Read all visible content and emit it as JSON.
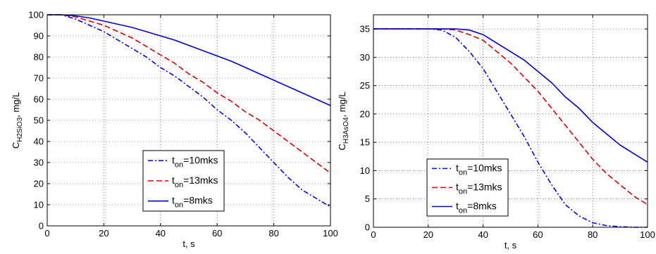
{
  "chart_data": [
    {
      "type": "line",
      "xlabel": "t, s",
      "ylabel": {
        "base": "C",
        "sub": "H2SiO3",
        "unit": ", mg/L"
      },
      "xlim": [
        0,
        100
      ],
      "ylim": [
        0,
        100
      ],
      "xticks": [
        0,
        20,
        40,
        60,
        80,
        100
      ],
      "yticks": [
        0,
        10,
        20,
        30,
        40,
        50,
        60,
        70,
        80,
        90,
        100
      ],
      "grid": true,
      "legend": {
        "placement": "lower-left",
        "sub": "on"
      },
      "series": [
        {
          "name": "t_on=10mks",
          "name_base": "t",
          "name_rest": "=10mks",
          "color": "#0000ff",
          "style": "dashdot",
          "x": [
            0,
            5,
            10,
            15,
            20,
            25,
            30,
            35,
            40,
            45,
            50,
            55,
            60,
            65,
            70,
            75,
            80,
            85,
            90,
            95,
            100
          ],
          "y": [
            100,
            100,
            98,
            95,
            92,
            88,
            84,
            80,
            75,
            71,
            66,
            61,
            55,
            50,
            44,
            37,
            30,
            23,
            17,
            13,
            9
          ]
        },
        {
          "name": "t_on=13mks",
          "name_base": "t",
          "name_rest": "=13mks",
          "color": "#e00000",
          "style": "dashed",
          "x": [
            0,
            5,
            10,
            15,
            20,
            25,
            30,
            35,
            40,
            45,
            50,
            55,
            60,
            65,
            70,
            75,
            80,
            85,
            90,
            95,
            100
          ],
          "y": [
            100,
            100,
            99,
            97,
            95,
            92,
            89,
            85,
            81,
            77,
            72,
            68,
            63,
            59,
            54,
            50,
            45,
            40,
            35,
            30,
            25
          ]
        },
        {
          "name": "t_on=8mks",
          "name_base": "t",
          "name_rest": "=8mks",
          "color": "#0000cc",
          "style": "solid",
          "x": [
            0,
            5,
            10,
            15,
            20,
            25,
            30,
            35,
            40,
            45,
            50,
            55,
            60,
            65,
            70,
            75,
            80,
            85,
            90,
            95,
            100
          ],
          "y": [
            100,
            100,
            99.5,
            98.5,
            97,
            95.5,
            94,
            92,
            90,
            88,
            85.5,
            83,
            80.5,
            78,
            75,
            72,
            69,
            66,
            63,
            60,
            57
          ]
        }
      ]
    },
    {
      "type": "line",
      "xlabel": "t, s",
      "ylabel": {
        "base": "C",
        "sub": "H3AsO4",
        "unit": ", mg/L"
      },
      "xlim": [
        0,
        100
      ],
      "ylim": [
        0,
        37.5
      ],
      "xticks": [
        0,
        20,
        40,
        60,
        80,
        100
      ],
      "yticks": [
        0,
        5,
        10,
        15,
        20,
        25,
        30,
        35
      ],
      "grid": true,
      "legend": {
        "placement": "lower-left",
        "sub": "on"
      },
      "series": [
        {
          "name": "t_on=10mks",
          "name_base": "t",
          "name_rest": "=10mks",
          "color": "#0000ff",
          "style": "dashdot",
          "x": [
            0,
            5,
            10,
            15,
            20,
            25,
            30,
            35,
            40,
            45,
            50,
            55,
            60,
            65,
            70,
            75,
            80,
            85,
            90,
            95,
            100
          ],
          "y": [
            35,
            35,
            35,
            35,
            35,
            34.8,
            33.5,
            31,
            28,
            24,
            20,
            16,
            11.5,
            7.5,
            4,
            2,
            0.8,
            0.3,
            0.1,
            0,
            0
          ]
        },
        {
          "name": "t_on=13mks",
          "name_base": "t",
          "name_rest": "=13mks",
          "color": "#e00000",
          "style": "dashed",
          "x": [
            0,
            5,
            10,
            15,
            20,
            25,
            30,
            35,
            40,
            45,
            50,
            55,
            60,
            65,
            70,
            75,
            80,
            85,
            90,
            95,
            100
          ],
          "y": [
            35,
            35,
            35,
            35,
            35,
            35,
            34.8,
            34,
            33,
            31,
            29,
            26.5,
            24,
            21,
            18,
            15,
            12,
            9.5,
            7.5,
            5.5,
            4
          ]
        },
        {
          "name": "t_on=8mks",
          "name_base": "t",
          "name_rest": "=8mks",
          "color": "#0000cc",
          "style": "solid",
          "x": [
            0,
            5,
            10,
            15,
            20,
            25,
            30,
            35,
            40,
            45,
            50,
            55,
            60,
            65,
            70,
            75,
            80,
            85,
            90,
            95,
            100
          ],
          "y": [
            35,
            35,
            35,
            35,
            35,
            35,
            35,
            34.8,
            34,
            32.5,
            31,
            29.5,
            27.5,
            25.5,
            23,
            21,
            18.5,
            16.5,
            14.5,
            13,
            11.5
          ]
        }
      ]
    }
  ]
}
